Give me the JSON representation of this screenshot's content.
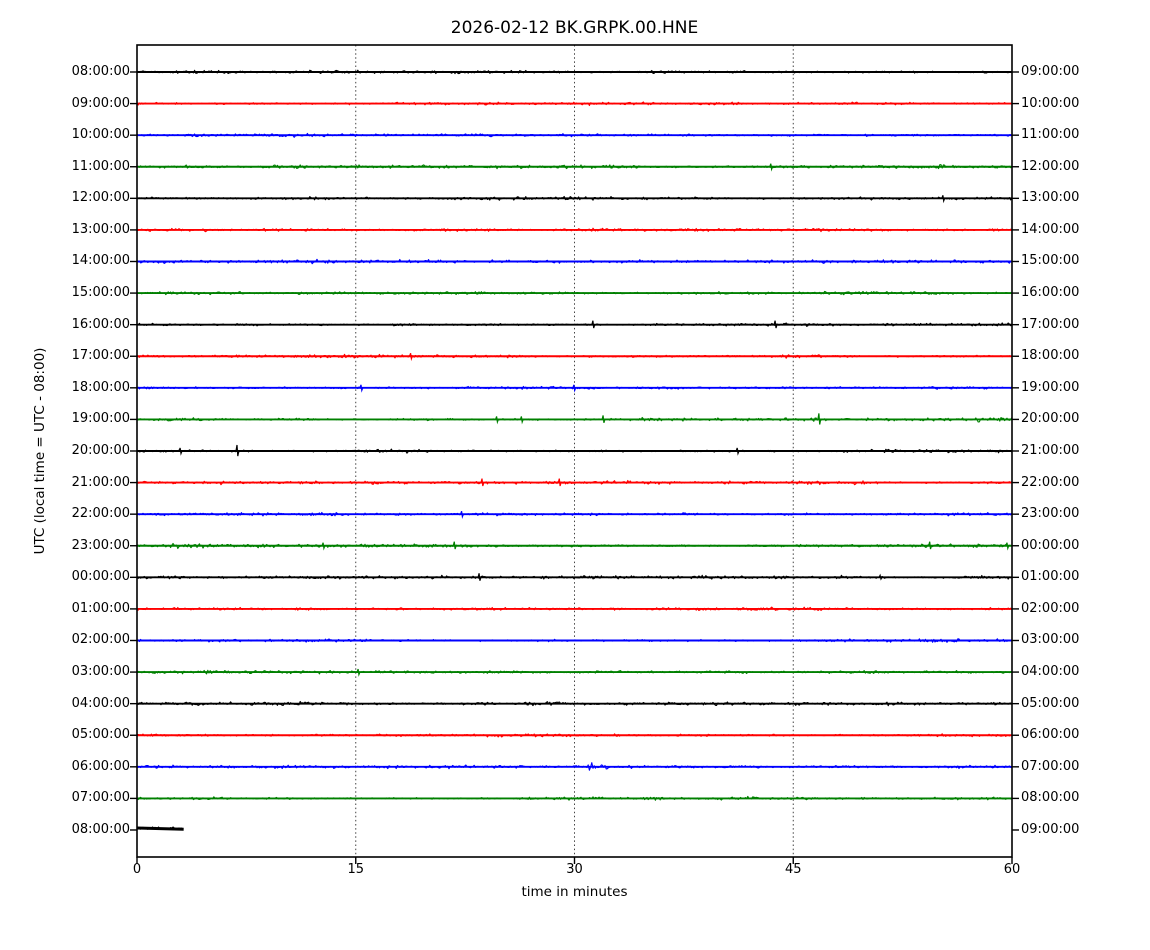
{
  "chart_data": {
    "type": "line",
    "subtype": "helicorder-dayplot",
    "title": "2026-02-12 BK.GRPK.00.HNE",
    "xlabel": "time in minutes",
    "ylabel": "UTC (local time = UTC - 08:00)",
    "xlim": [
      0,
      60
    ],
    "x_ticks": [
      0,
      15,
      30,
      45,
      60
    ],
    "grid": {
      "vertical_dotted_at": [
        15,
        30,
        45
      ],
      "horizontal": false
    },
    "legend": "none",
    "colors": {
      "black": "#000000",
      "red": "#ff0000",
      "blue": "#0000ff",
      "green": "#008000"
    },
    "interval_minutes": 60,
    "rows": [
      {
        "left_label": "08:00:00",
        "right_label": "09:00:00",
        "color": "black",
        "events": [],
        "bursts": [],
        "coverage": [
          0,
          60
        ]
      },
      {
        "left_label": "09:00:00",
        "right_label": "10:00:00",
        "color": "red",
        "events": [],
        "bursts": [],
        "coverage": [
          0,
          60
        ]
      },
      {
        "left_label": "10:00:00",
        "right_label": "11:00:00",
        "color": "blue",
        "events": [],
        "bursts": [],
        "coverage": [
          0,
          60
        ]
      },
      {
        "left_label": "11:00:00",
        "right_label": "12:00:00",
        "color": "green",
        "events": [
          {
            "m": 43.5,
            "a": 3
          }
        ],
        "bursts": [],
        "coverage": [
          0,
          60
        ]
      },
      {
        "left_label": "12:00:00",
        "right_label": "13:00:00",
        "color": "black",
        "events": [
          {
            "m": 55.3,
            "a": 3
          }
        ],
        "bursts": [],
        "coverage": [
          0,
          60
        ]
      },
      {
        "left_label": "13:00:00",
        "right_label": "14:00:00",
        "color": "red",
        "events": [],
        "bursts": [],
        "coverage": [
          0,
          60
        ]
      },
      {
        "left_label": "14:00:00",
        "right_label": "15:00:00",
        "color": "blue",
        "events": [],
        "bursts": [],
        "coverage": [
          0,
          60
        ]
      },
      {
        "left_label": "15:00:00",
        "right_label": "16:00:00",
        "color": "green",
        "events": [],
        "bursts": [],
        "coverage": [
          0,
          60
        ]
      },
      {
        "left_label": "16:00:00",
        "right_label": "17:00:00",
        "color": "black",
        "events": [
          {
            "m": 31.3,
            "a": 4
          },
          {
            "m": 43.8,
            "a": 4
          }
        ],
        "bursts": [],
        "coverage": [
          0,
          60
        ]
      },
      {
        "left_label": "17:00:00",
        "right_label": "18:00:00",
        "color": "red",
        "events": [
          {
            "m": 18.8,
            "a": 3
          }
        ],
        "bursts": [],
        "coverage": [
          0,
          60
        ]
      },
      {
        "left_label": "18:00:00",
        "right_label": "19:00:00",
        "color": "blue",
        "events": [
          {
            "m": 15.4,
            "a": 3
          },
          {
            "m": 30.0,
            "a": 3
          }
        ],
        "bursts": [],
        "coverage": [
          0,
          60
        ]
      },
      {
        "left_label": "19:00:00",
        "right_label": "20:00:00",
        "color": "green",
        "events": [
          {
            "m": 24.7,
            "a": 3
          },
          {
            "m": 26.4,
            "a": 3
          },
          {
            "m": 32.0,
            "a": 4
          },
          {
            "m": 46.8,
            "a": 6
          }
        ],
        "bursts": [
          {
            "from": 57.5,
            "to": 60,
            "mult": 1.8
          }
        ],
        "coverage": [
          0,
          60
        ]
      },
      {
        "left_label": "20:00:00",
        "right_label": "21:00:00",
        "color": "black",
        "events": [
          {
            "m": 3.0,
            "a": 3
          },
          {
            "m": 6.9,
            "a": 6
          },
          {
            "m": 41.2,
            "a": 3
          }
        ],
        "bursts": [],
        "coverage": [
          0,
          60
        ]
      },
      {
        "left_label": "21:00:00",
        "right_label": "22:00:00",
        "color": "red",
        "events": [
          {
            "m": 23.7,
            "a": 4
          },
          {
            "m": 29.0,
            "a": 4
          }
        ],
        "bursts": [],
        "coverage": [
          0,
          60
        ]
      },
      {
        "left_label": "22:00:00",
        "right_label": "23:00:00",
        "color": "blue",
        "events": [
          {
            "m": 22.3,
            "a": 3
          }
        ],
        "bursts": [],
        "coverage": [
          0,
          60
        ]
      },
      {
        "left_label": "23:00:00",
        "right_label": "00:00:00",
        "color": "green",
        "events": [
          {
            "m": 12.8,
            "a": 3
          },
          {
            "m": 21.8,
            "a": 4
          },
          {
            "m": 54.4,
            "a": 4
          },
          {
            "m": 59.7,
            "a": 3
          }
        ],
        "bursts": [
          {
            "from": 2.3,
            "to": 4.6,
            "mult": 1.8
          }
        ],
        "coverage": [
          0,
          60
        ]
      },
      {
        "left_label": "00:00:00",
        "right_label": "01:00:00",
        "color": "black",
        "events": [
          {
            "m": 23.5,
            "a": 4
          },
          {
            "m": 51.0,
            "a": 2
          }
        ],
        "bursts": [],
        "coverage": [
          0,
          60
        ]
      },
      {
        "left_label": "01:00:00",
        "right_label": "02:00:00",
        "color": "red",
        "events": [],
        "bursts": [],
        "coverage": [
          0,
          60
        ]
      },
      {
        "left_label": "02:00:00",
        "right_label": "03:00:00",
        "color": "blue",
        "events": [],
        "bursts": [],
        "coverage": [
          0,
          60
        ]
      },
      {
        "left_label": "03:00:00",
        "right_label": "04:00:00",
        "color": "green",
        "events": [
          {
            "m": 15.2,
            "a": 3
          }
        ],
        "bursts": [],
        "coverage": [
          0,
          60
        ]
      },
      {
        "left_label": "04:00:00",
        "right_label": "05:00:00",
        "color": "black",
        "events": [],
        "bursts": [],
        "coverage": [
          0,
          60
        ]
      },
      {
        "left_label": "05:00:00",
        "right_label": "06:00:00",
        "color": "red",
        "events": [],
        "bursts": [],
        "coverage": [
          0,
          60
        ]
      },
      {
        "left_label": "06:00:00",
        "right_label": "07:00:00",
        "color": "blue",
        "events": [],
        "bursts": [
          {
            "from": 30.9,
            "to": 32.3,
            "mult": 2.5
          }
        ],
        "coverage": [
          0,
          60
        ]
      },
      {
        "left_label": "07:00:00",
        "right_label": "08:00:00",
        "color": "green",
        "events": [],
        "bursts": [],
        "coverage": [
          0,
          60
        ]
      },
      {
        "left_label": "08:00:00",
        "right_label": "09:00:00",
        "color": "black",
        "events": [],
        "bursts": [],
        "coverage": [
          0,
          3.2
        ],
        "partial": true,
        "y_offset": -2
      }
    ]
  }
}
